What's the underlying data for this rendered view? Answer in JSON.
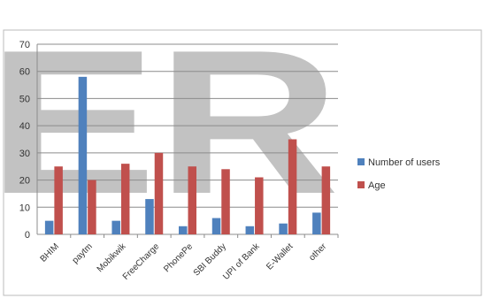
{
  "watermark": {
    "text": "ER"
  },
  "chart_data": {
    "type": "bar",
    "title": "",
    "xlabel": "",
    "ylabel": "",
    "ylim": [
      0,
      70
    ],
    "yticks": [
      0,
      10,
      20,
      30,
      40,
      50,
      60,
      70
    ],
    "grid": true,
    "legend_position": "right",
    "categories": [
      "BHIM",
      "paytm",
      "Mobikwik",
      "FreeCharge",
      "PhonePe",
      "SBI Buddy",
      "UPI of Bank",
      "E-Wallet",
      "other"
    ],
    "series": [
      {
        "name": "Number of users",
        "color": "#4f81bd",
        "values": [
          5,
          58,
          5,
          13,
          3,
          6,
          3,
          4,
          8
        ]
      },
      {
        "name": "Age",
        "color": "#c0504d",
        "values": [
          25,
          20,
          26,
          30,
          25,
          24,
          21,
          35,
          25
        ]
      }
    ]
  }
}
